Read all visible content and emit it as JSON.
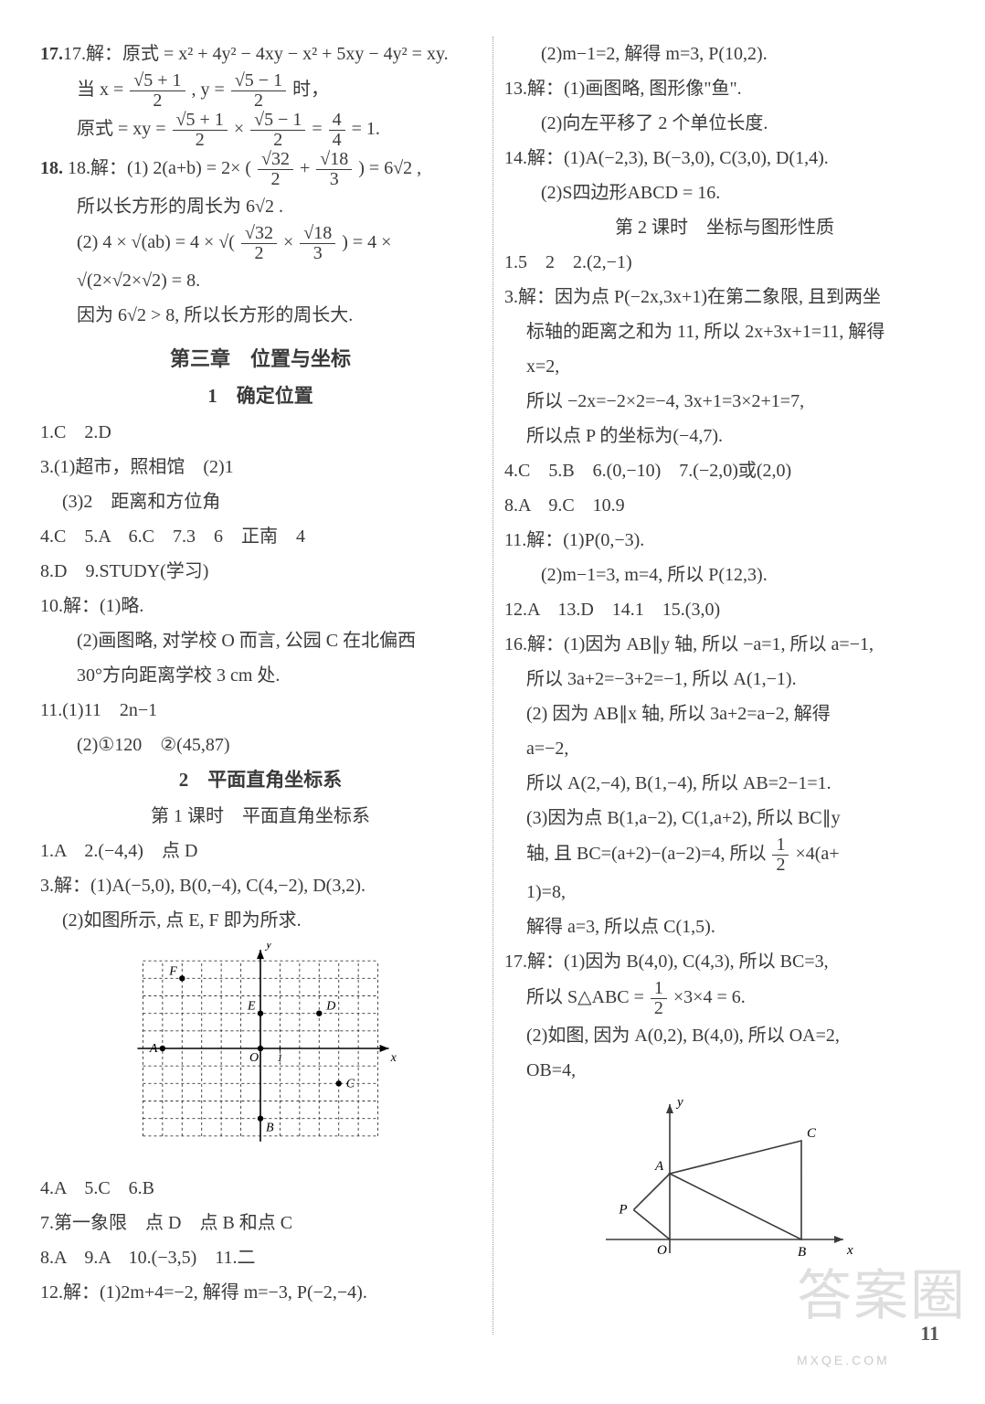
{
  "watermark_main": "答案圈",
  "watermark_sub": "MXQE.COM",
  "page_number": "11",
  "left": {
    "q17_l1": "17.解：原式 = x² + 4y² − 4xy − x² + 5xy − 4y² = xy.",
    "q17_l2a": "当 x = ",
    "q17_l2_frac1_num": "√5 + 1",
    "q17_l2_frac1_den": "2",
    "q17_l2b": " , y = ",
    "q17_l2_frac2_num": "√5 − 1",
    "q17_l2_frac2_den": "2",
    "q17_l2c": " 时，",
    "q17_l3a": "原式 = xy = ",
    "q17_l3_f1n": "√5 + 1",
    "q17_l3_f1d": "2",
    "q17_l3b": " × ",
    "q17_l3_f2n": "√5 − 1",
    "q17_l3_f2d": "2",
    "q17_l3c": " = ",
    "q17_l3_f3n": "4",
    "q17_l3_f3d": "4",
    "q17_l3d": " = 1.",
    "q18_l1a": "18.解：(1) 2(a+b) = 2× ( ",
    "q18_f1n": "√32",
    "q18_f1d": "2",
    "q18_l1b": " + ",
    "q18_f2n": "√18",
    "q18_f2d": "3",
    "q18_l1c": " ) = 6√2 ,",
    "q18_l2": "所以长方形的周长为 6√2 .",
    "q18_l3a": "(2) 4 × √(ab) = 4 × √( ",
    "q18_f3n": "√32",
    "q18_f3d": "2",
    "q18_l3b": " × ",
    "q18_f4n": "√18",
    "q18_f4d": "3",
    "q18_l3c": " ) = 4 ×",
    "q18_l4": "√(2×√2×√2) = 8.",
    "q18_l5": "因为 6√2 > 8, 所以长方形的周长大.",
    "chapter3": "第三章　位置与坐标",
    "sec1": "1　确定位置",
    "s1_q1": "1.C　2.D",
    "s1_q3a": "3.(1)超市，照相馆　(2)1",
    "s1_q3b": "(3)2　距离和方位角",
    "s1_q4": "4.C　5.A　6.C　7.3　6　正南　4",
    "s1_q8": "8.D　9.STUDY(学习)",
    "s1_q10a": "10.解：(1)略.",
    "s1_q10b": "(2)画图略, 对学校 O 而言, 公园 C 在北偏西",
    "s1_q10c": "30°方向距离学校 3 cm 处.",
    "s1_q11a": "11.(1)11　2n−1",
    "s1_q11b": "(2)①120　②(45,87)",
    "sec2": "2　平面直角坐标系",
    "lesson1": "第 1 课时　平面直角坐标系",
    "s2_q1": "1.A　2.(−4,4)　点 D",
    "s2_q3a": "3.解：(1)A(−5,0), B(0,−4), C(4,−2), D(3,2).",
    "s2_q3b": "(2)如图所示, 点 E, F 即为所求.",
    "s2_q4": "4.A　5.C　6.B"
  },
  "right": {
    "q7": "7.第一象限　点 D　点 B 和点 C",
    "q8": "8.A　9.A　10.(−3,5)　11.二",
    "q12a": "12.解：(1)2m+4=−2, 解得 m=−3, P(−2,−4).",
    "q12b": "(2)m−1=2, 解得 m=3, P(10,2).",
    "q13a": "13.解：(1)画图略, 图形像\"鱼\".",
    "q13b": "(2)向左平移了 2 个单位长度.",
    "q14a": "14.解：(1)A(−2,3), B(−3,0), C(3,0), D(1,4).",
    "q14b": "(2)S四边形ABCD = 16.",
    "lesson2": "第 2 课时　坐标与图形性质",
    "l2_q1": "1.5　2　2.(2,−1)",
    "l2_q3a": "3.解：因为点 P(−2x,3x+1)在第二象限, 且到两坐",
    "l2_q3b": "标轴的距离之和为 11, 所以 2x+3x+1=11, 解得",
    "l2_q3c": "x=2,",
    "l2_q3d": "所以 −2x=−2×2=−4, 3x+1=3×2+1=7,",
    "l2_q3e": "所以点 P 的坐标为(−4,7).",
    "l2_q4": "4.C　5.B　6.(0,−10)　7.(−2,0)或(2,0)",
    "l2_q8": "8.A　9.C　10.9",
    "l2_q11a": "11.解：(1)P(0,−3).",
    "l2_q11b": "(2)m−1=3, m=4, 所以 P(12,3).",
    "l2_q12": "12.A　13.D　14.1　15.(3,0)",
    "l2_q16a": "16.解：(1)因为 AB∥y 轴, 所以 −a=1, 所以 a=−1,",
    "l2_q16b": "所以 3a+2=−3+2=−1, 所以 A(1,−1).",
    "l2_q16c": "(2) 因为 AB∥x 轴, 所以 3a+2=a−2, 解得",
    "l2_q16d": "a=−2,",
    "l2_q16e": "所以 A(2,−4), B(1,−4), 所以 AB=2−1=1.",
    "l2_q16f": "(3)因为点 B(1,a−2), C(1,a+2), 所以 BC∥y",
    "l2_q16g_a": "轴, 且 BC=(a+2)−(a−2)=4, 所以 ",
    "l2_q16g_f_n": "1",
    "l2_q16g_f_d": "2",
    "l2_q16g_b": "×4(a+",
    "l2_q16h": "1)=8,",
    "l2_q16i": "解得 a=3, 所以点 C(1,5).",
    "l2_q17a": "17.解：(1)因为 B(4,0), C(4,3), 所以 BC=3,",
    "l2_q17b_a": "所以 S△ABC = ",
    "l2_q17b_fn": "1",
    "l2_q17b_fd": "2",
    "l2_q17b_b": "×3×4 = 6.",
    "l2_q17c": "(2)如图, 因为 A(0,2), B(4,0), 所以 OA=2,",
    "l2_q17d": "OB=4,"
  },
  "grid_fig": {
    "xmin": -6,
    "xmax": 6,
    "ymin": -5,
    "ymax": 5,
    "points": {
      "A": [
        -5,
        0
      ],
      "B": [
        0,
        -4
      ],
      "C": [
        4,
        -2
      ],
      "D": [
        3,
        2
      ],
      "E": [
        0,
        2
      ],
      "F": [
        -4,
        4
      ],
      "O": [
        0,
        0
      ]
    },
    "color_grid": "#333333",
    "color_point": "#000000"
  },
  "tri_fig": {
    "O": [
      0,
      0
    ],
    "A": [
      0,
      2
    ],
    "B": [
      4,
      0
    ],
    "C": [
      4,
      3
    ],
    "P": [
      -1.1,
      0.9
    ],
    "stroke": "#3a3a3a",
    "axis": "#3a3a3a"
  }
}
